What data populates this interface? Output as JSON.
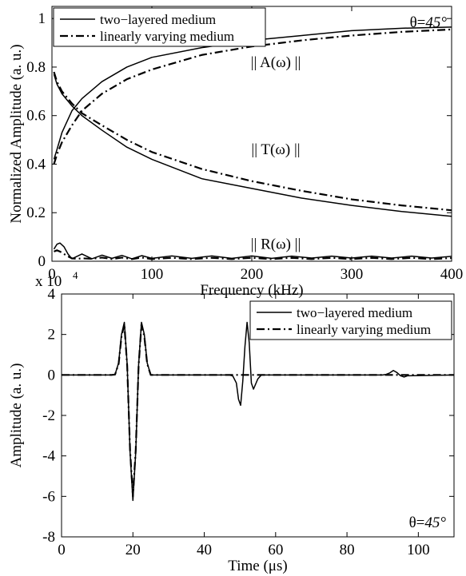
{
  "chart_data": [
    {
      "type": "line",
      "title": "",
      "xlabel": "Frequency (kHz)",
      "ylabel": "Normalized Amplitude (a. u.)",
      "xlim": [
        0,
        400
      ],
      "ylim": [
        0,
        1.05
      ],
      "xticks": [
        0,
        100,
        200,
        300,
        400
      ],
      "yticks": [
        0,
        0.2,
        0.4,
        0.6,
        0.8,
        1
      ],
      "grid": false,
      "legend_position": "top-left",
      "legend": [
        "two−layered medium",
        "linearly varying medium"
      ],
      "angle_prefix": "θ=",
      "angle_value": "45°",
      "annotations": [
        "|| A(ω) ||",
        "|| T(ω) ||",
        "|| R(ω) ||"
      ],
      "series": [
        {
          "name": "two−layered medium",
          "label": "|| A(ω) ||",
          "style": "solid",
          "x": [
            2,
            5,
            10,
            20,
            30,
            50,
            75,
            100,
            150,
            200,
            250,
            300,
            350,
            400
          ],
          "y": [
            0.42,
            0.46,
            0.53,
            0.62,
            0.67,
            0.74,
            0.8,
            0.84,
            0.88,
            0.91,
            0.93,
            0.95,
            0.96,
            0.965
          ]
        },
        {
          "name": "linearly varying medium",
          "label": "|| A(ω) ||",
          "style": "dashdot",
          "x": [
            2,
            5,
            10,
            20,
            30,
            50,
            75,
            100,
            150,
            200,
            250,
            300,
            350,
            400
          ],
          "y": [
            0.4,
            0.44,
            0.49,
            0.56,
            0.62,
            0.69,
            0.75,
            0.79,
            0.85,
            0.885,
            0.91,
            0.93,
            0.945,
            0.955
          ]
        },
        {
          "name": "two−layered medium",
          "label": "|| T(ω) ||",
          "style": "solid",
          "x": [
            2,
            5,
            10,
            20,
            30,
            50,
            75,
            100,
            150,
            200,
            250,
            300,
            350,
            400
          ],
          "y": [
            0.77,
            0.73,
            0.69,
            0.64,
            0.6,
            0.54,
            0.47,
            0.42,
            0.34,
            0.3,
            0.26,
            0.23,
            0.205,
            0.185
          ]
        },
        {
          "name": "linearly varying medium",
          "label": "|| T(ω) ||",
          "style": "dashdot",
          "x": [
            2,
            5,
            10,
            20,
            30,
            50,
            75,
            100,
            150,
            200,
            250,
            300,
            350,
            400
          ],
          "y": [
            0.78,
            0.74,
            0.7,
            0.65,
            0.61,
            0.56,
            0.5,
            0.45,
            0.38,
            0.33,
            0.29,
            0.255,
            0.23,
            0.21
          ]
        },
        {
          "name": "two−layered medium",
          "label": "|| R(ω) ||",
          "style": "solid",
          "x": [
            2,
            5,
            8,
            12,
            16,
            20,
            25,
            30,
            40,
            50,
            60,
            70,
            80,
            90,
            100,
            120,
            140,
            160,
            180,
            200,
            220,
            240,
            260,
            280,
            300,
            320,
            340,
            360,
            380,
            400
          ],
          "y": [
            0.05,
            0.07,
            0.075,
            0.06,
            0.03,
            0.01,
            0.02,
            0.03,
            0.01,
            0.025,
            0.012,
            0.024,
            0.01,
            0.023,
            0.012,
            0.022,
            0.012,
            0.022,
            0.012,
            0.022,
            0.012,
            0.021,
            0.013,
            0.021,
            0.013,
            0.021,
            0.013,
            0.021,
            0.013,
            0.02
          ]
        },
        {
          "name": "linearly varying medium",
          "label": "|| R(ω) ||",
          "style": "dashdot",
          "x": [
            2,
            5,
            8,
            12,
            16,
            20,
            25,
            30,
            40,
            50,
            60,
            70,
            80,
            90,
            100,
            120,
            140,
            160,
            180,
            200,
            220,
            240,
            260,
            280,
            300,
            320,
            340,
            360,
            380,
            400
          ],
          "y": [
            0.04,
            0.045,
            0.04,
            0.03,
            0.02,
            0.012,
            0.01,
            0.012,
            0.01,
            0.015,
            0.009,
            0.015,
            0.009,
            0.015,
            0.009,
            0.014,
            0.009,
            0.014,
            0.009,
            0.014,
            0.009,
            0.014,
            0.009,
            0.014,
            0.009,
            0.014,
            0.009,
            0.014,
            0.009,
            0.013
          ]
        }
      ]
    },
    {
      "type": "line",
      "title": "",
      "xlabel": "Time (μs)",
      "ylabel": "Amplitude (a. u.)",
      "xlim": [
        0,
        110
      ],
      "ylim": [
        -8,
        4
      ],
      "xticks": [
        0,
        20,
        40,
        60,
        80,
        100
      ],
      "yticks": [
        -8,
        -6,
        -4,
        -2,
        0,
        2,
        4
      ],
      "y_multiplier_text": "x 10",
      "y_multiplier_exp": "4",
      "grid": false,
      "legend_position": "top-right",
      "legend": [
        "two−layered medium",
        "linearly varying medium"
      ],
      "angle_prefix": "θ=",
      "angle_value": "45°",
      "series": [
        {
          "name": "two−layered medium",
          "style": "solid",
          "x": [
            0,
            14,
            15,
            16,
            16.8,
            17.6,
            18.4,
            19.2,
            20,
            20.8,
            21.6,
            22.4,
            23.2,
            24,
            25,
            46,
            47,
            48,
            49,
            49.6,
            50.2,
            50.8,
            51.4,
            52,
            52.6,
            53.2,
            53.8,
            54.4,
            55,
            56,
            90,
            91,
            92,
            93,
            94,
            95,
            96,
            97,
            110
          ],
          "y": [
            0,
            0,
            0.02,
            0.6,
            2.0,
            2.6,
            0.5,
            -3.8,
            -6.2,
            -3.8,
            0.5,
            2.6,
            2.0,
            0.6,
            0,
            0,
            0,
            -0.05,
            -0.4,
            -1.2,
            -1.5,
            -0.3,
            1.4,
            2.6,
            1.6,
            -0.4,
            -0.7,
            -0.45,
            -0.2,
            0,
            0,
            0.03,
            0.1,
            0.22,
            0.12,
            -0.04,
            -0.1,
            -0.04,
            0
          ]
        },
        {
          "name": "linearly varying medium",
          "style": "dashdot",
          "x": [
            0,
            14,
            15,
            16,
            16.8,
            17.6,
            18.4,
            19.2,
            20,
            20.8,
            21.6,
            22.4,
            23.2,
            24,
            25,
            110
          ],
          "y": [
            0,
            0,
            0.02,
            0.55,
            1.9,
            2.5,
            0.45,
            -3.7,
            -6.0,
            -3.7,
            0.45,
            2.5,
            1.9,
            0.55,
            0,
            0
          ]
        }
      ]
    }
  ]
}
